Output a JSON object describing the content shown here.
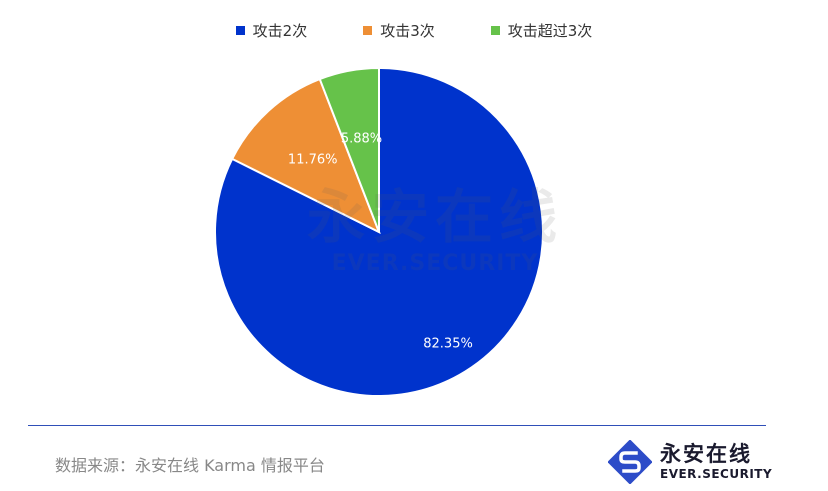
{
  "chart_data": {
    "type": "pie",
    "title": "",
    "legend_position": "top",
    "slices": [
      {
        "name": "攻击2次",
        "value": 82.35,
        "label": "82.35%",
        "color": "#0033cc"
      },
      {
        "name": "攻击3次",
        "value": 11.76,
        "label": "11.76%",
        "color": "#ee8f35"
      },
      {
        "name": "攻击超过3次",
        "value": 5.88,
        "label": "5.88%",
        "color": "#66c24a"
      }
    ]
  },
  "watermark": {
    "cn": "永安在线",
    "en": "EVER.SECURITY"
  },
  "footer": {
    "source": "数据来源：永安在线 Karma 情报平台",
    "logo_cn": "永安在线",
    "logo_en": "EVER.SECURITY",
    "logo_color": "#2d4cc8"
  }
}
